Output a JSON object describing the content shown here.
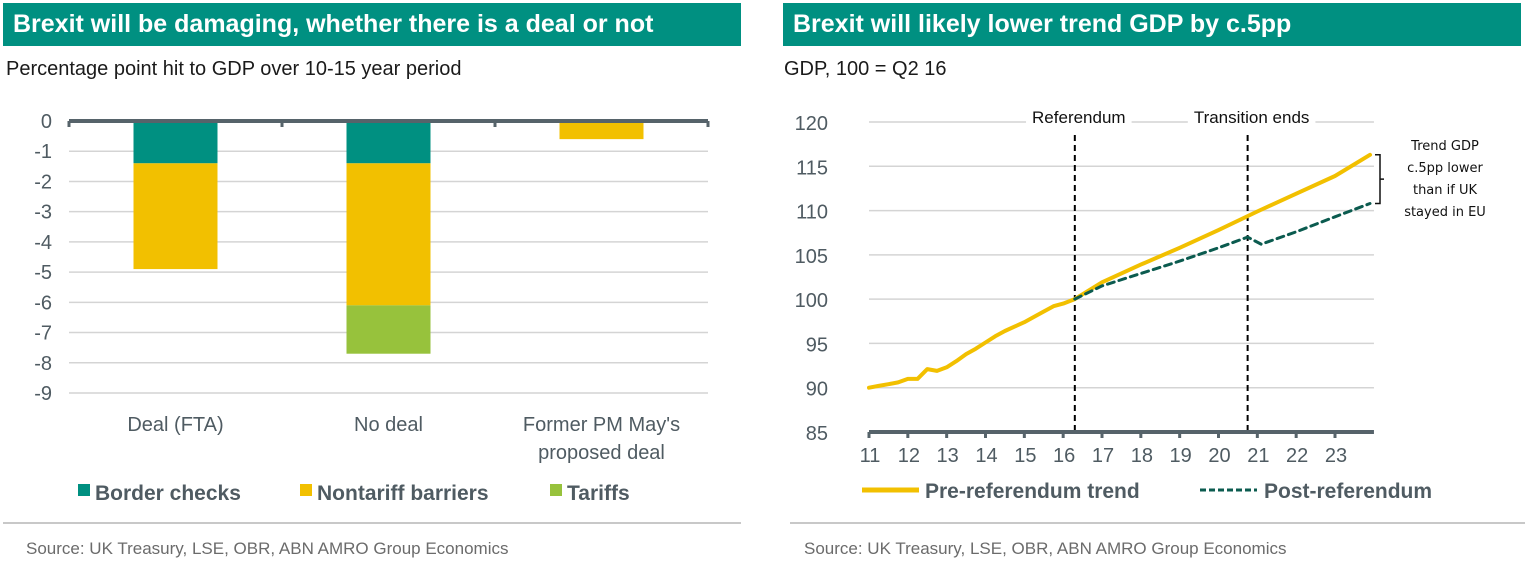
{
  "left": {
    "header": "Brexit will be damaging, whether there is a deal or not",
    "subtitle": "Percentage point hit to GDP over 10-15 year period",
    "source": "Source: UK Treasury, LSE, OBR, ABN AMRO Group Economics"
  },
  "right": {
    "header": "Brexit will likely lower trend GDP by c.5pp",
    "subtitle": "GDP, 100 = Q2 16",
    "source": "Source: UK Treasury, LSE, OBR, ABN AMRO Group Economics"
  },
  "chart_data": [
    {
      "type": "bar",
      "stacked": true,
      "title": "Brexit will be damaging, whether there is a deal or not",
      "subtitle": "Percentage point hit to GDP over 10-15 year period",
      "xlabel": "",
      "ylabel": "",
      "ylim": [
        -9,
        0
      ],
      "yticks": [
        "0",
        "-1",
        "-2",
        "-3",
        "-4",
        "-5",
        "-6",
        "-7",
        "-8",
        "-9"
      ],
      "grid": true,
      "categories": [
        "Deal (FTA)",
        "No deal",
        "Former PM May's proposed deal"
      ],
      "category_lines": [
        [
          "Deal (FTA)"
        ],
        [
          "No deal"
        ],
        [
          "Former PM May's",
          "proposed deal"
        ]
      ],
      "series": [
        {
          "name": "Border checks",
          "color": "#009081",
          "values": [
            -1.4,
            -1.4,
            0
          ]
        },
        {
          "name": "Nontariff barriers",
          "color": "#f2c000",
          "values": [
            -3.5,
            -4.7,
            -0.6
          ]
        },
        {
          "name": "Tariffs",
          "color": "#97c23c",
          "values": [
            0,
            -1.6,
            0
          ]
        }
      ],
      "legend": "bottom"
    },
    {
      "type": "line",
      "title": "Brexit will likely lower trend GDP by c.5pp",
      "subtitle": "GDP, 100 = Q2 16",
      "xlabel": "",
      "ylabel": "",
      "ylim": [
        85,
        120
      ],
      "xlim": [
        11,
        23.9
      ],
      "yticks": [
        "120",
        "115",
        "110",
        "105",
        "100",
        "95",
        "90",
        "85"
      ],
      "xticks": [
        "11",
        "12",
        "13",
        "14",
        "15",
        "16",
        "17",
        "18",
        "19",
        "20",
        "21",
        "22",
        "23"
      ],
      "grid": true,
      "legend": "bottom",
      "series": [
        {
          "name": "Pre-referendum trend",
          "color": "#f2c000",
          "style": "solid",
          "x": [
            11.0,
            11.25,
            11.5,
            11.75,
            12.0,
            12.25,
            12.5,
            12.75,
            13.0,
            13.25,
            13.5,
            13.75,
            14.0,
            14.25,
            14.5,
            14.75,
            15.0,
            15.25,
            15.5,
            15.75,
            16.0,
            16.3,
            17.0,
            18.0,
            19.0,
            20.0,
            21.0,
            22.0,
            23.0,
            23.9
          ],
          "y": [
            90.0,
            90.2,
            90.4,
            90.6,
            91.0,
            91.0,
            92.1,
            91.9,
            92.3,
            93.0,
            93.8,
            94.4,
            95.1,
            95.8,
            96.4,
            96.9,
            97.4,
            98.0,
            98.6,
            99.2,
            99.5,
            100.0,
            101.9,
            103.9,
            105.8,
            107.8,
            109.9,
            111.9,
            113.9,
            116.3
          ]
        },
        {
          "name": "Post-referendum",
          "color": "#0b5b4f",
          "style": "dashed",
          "x": [
            16.3,
            17.0,
            18.0,
            19.0,
            20.0,
            20.75,
            21.1,
            22.0,
            23.0,
            23.9
          ],
          "y": [
            100.0,
            101.5,
            102.9,
            104.3,
            105.8,
            107.0,
            106.2,
            107.6,
            109.3,
            110.8
          ]
        }
      ],
      "annotations": [
        {
          "label": "Referendum",
          "x": 16.3,
          "type": "vline"
        },
        {
          "label": "Transition ends",
          "x": 20.75,
          "type": "vline"
        },
        {
          "label_lines": [
            "Trend GDP",
            "c.5pp lower",
            "than if UK",
            "stayed in EU"
          ],
          "type": "bracket",
          "y_range": [
            110.8,
            116.3
          ]
        }
      ]
    }
  ]
}
